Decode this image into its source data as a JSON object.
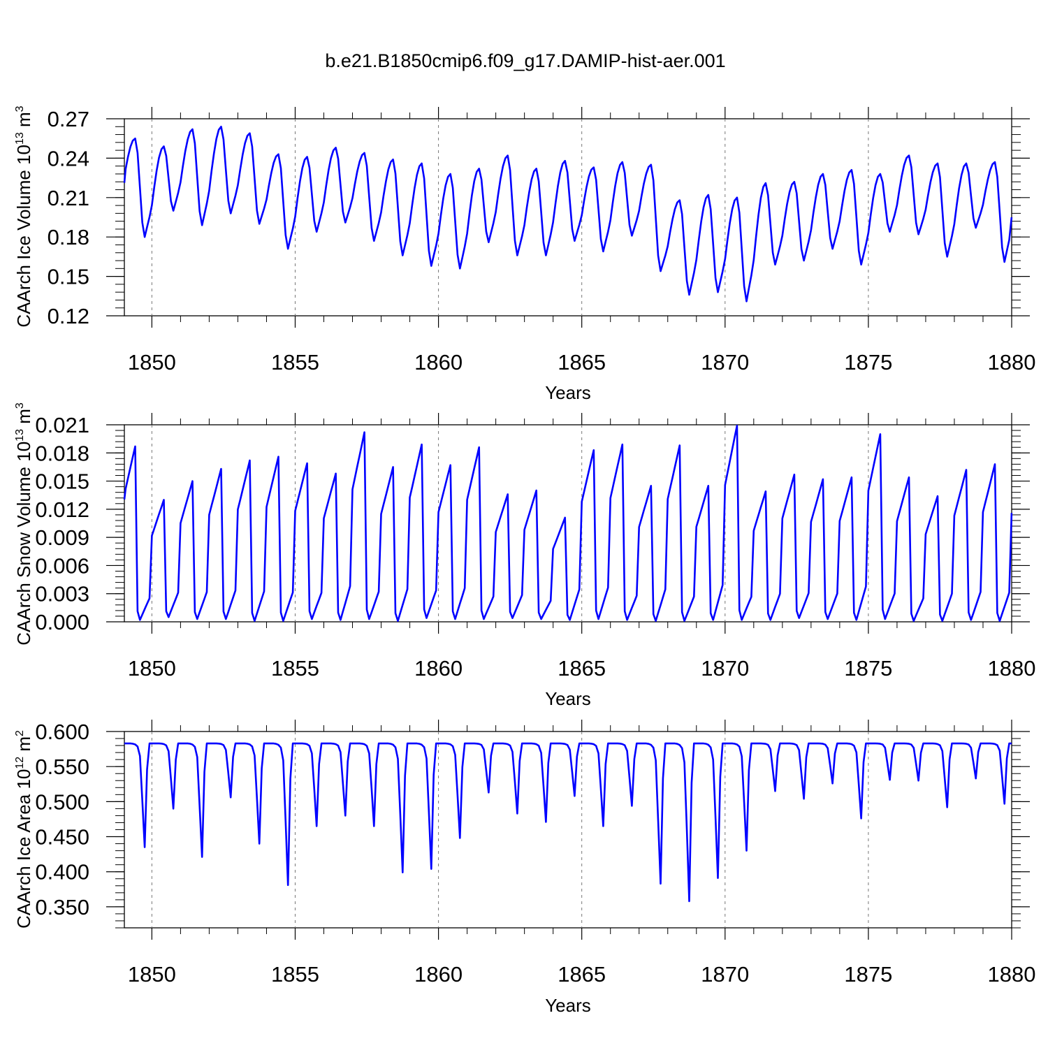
{
  "title": "b.e21.B1850cmip6.f09_g17.DAMIP-hist-aer.001",
  "line_color": "#0000ff",
  "chart_data": [
    {
      "type": "line",
      "ylabel": "CAArch Ice Volume 10",
      "yunit_exp": "13",
      "yunit_base": " m",
      "yunit_pow": "3",
      "xlabel": "Years",
      "xlim": [
        1849.04,
        1880.0
      ],
      "ylim": [
        0.12,
        0.27
      ],
      "xticks": [
        1850,
        1855,
        1860,
        1865,
        1870,
        1875,
        1880
      ],
      "yticks": [
        0.12,
        0.15,
        0.18,
        0.21,
        0.24,
        0.27
      ],
      "ytick_labels": [
        "0.12",
        "0.15",
        "0.18",
        "0.21",
        "0.24",
        "0.27"
      ],
      "series": [
        {
          "name": "CAArch Ice Volume",
          "start": 1849.0,
          "step": 0.08333,
          "peak_month": 5,
          "min_month": 9,
          "annual_max": [
            0.255,
            0.249,
            0.262,
            0.264,
            0.259,
            0.243,
            0.241,
            0.248,
            0.244,
            0.239,
            0.236,
            0.228,
            0.232,
            0.242,
            0.232,
            0.238,
            0.233,
            0.237,
            0.235,
            0.208,
            0.212,
            0.21,
            0.221,
            0.222,
            0.228,
            0.231,
            0.228,
            0.242,
            0.236,
            0.236,
            0.237
          ],
          "annual_min": [
            0.18,
            0.2,
            0.189,
            0.198,
            0.19,
            0.171,
            0.184,
            0.191,
            0.177,
            0.166,
            0.158,
            0.156,
            0.176,
            0.166,
            0.166,
            0.177,
            0.169,
            0.181,
            0.154,
            0.136,
            0.138,
            0.131,
            0.159,
            0.162,
            0.171,
            0.159,
            0.184,
            0.182,
            0.165,
            0.187,
            0.161
          ],
          "end_value": 0.195
        }
      ]
    },
    {
      "type": "line",
      "ylabel": "CAArch Snow Volume 10",
      "yunit_exp": "13",
      "yunit_base": " m",
      "yunit_pow": "3",
      "xlabel": "Years",
      "xlim": [
        1849.04,
        1880.0
      ],
      "ylim": [
        0.0,
        0.021
      ],
      "xticks": [
        1850,
        1855,
        1860,
        1865,
        1870,
        1875,
        1880
      ],
      "yticks": [
        0.0,
        0.003,
        0.006,
        0.009,
        0.012,
        0.015,
        0.018,
        0.021
      ],
      "ytick_labels": [
        "0.000",
        "0.003",
        "0.006",
        "0.009",
        "0.012",
        "0.015",
        "0.018",
        "0.021"
      ],
      "series": [
        {
          "name": "CAArch Snow Volume",
          "start": 1849.0,
          "step": 0.08333,
          "peak_month": 5,
          "min_month": 7,
          "annual_max": [
            0.0187,
            0.013,
            0.015,
            0.0163,
            0.0172,
            0.0176,
            0.0169,
            0.0158,
            0.0202,
            0.0165,
            0.0189,
            0.0167,
            0.0186,
            0.0136,
            0.014,
            0.0111,
            0.0183,
            0.0189,
            0.0145,
            0.0188,
            0.0145,
            0.0209,
            0.0139,
            0.0157,
            0.0152,
            0.0154,
            0.02,
            0.0154,
            0.0134,
            0.0162,
            0.0168
          ],
          "annual_min": [
            0.0002,
            0.0005,
            0.0003,
            0.0003,
            0.0001,
            0.0001,
            0.0003,
            0.0002,
            0.0003,
            0.0001,
            0.0004,
            0.0003,
            0.0003,
            0.0004,
            0.0003,
            0.0002,
            0.0003,
            0.0002,
            0.0001,
            0.0001,
            0.0002,
            0.0002,
            0.0002,
            0.0004,
            0.0003,
            0.0002,
            0.0003,
            0.0001,
            0.0001,
            0.0002,
            0.0001
          ],
          "end_value": 0.0116
        }
      ]
    },
    {
      "type": "line",
      "ylabel": "CAArch Ice Area 10",
      "yunit_exp": "12",
      "yunit_base": " m",
      "yunit_pow": "2",
      "xlabel": "Years",
      "xlim": [
        1849.04,
        1880.0
      ],
      "ylim": [
        0.32,
        0.6
      ],
      "xticks": [
        1850,
        1855,
        1860,
        1865,
        1870,
        1875,
        1880
      ],
      "yticks": [
        0.35,
        0.4,
        0.45,
        0.5,
        0.55,
        0.6
      ],
      "ytick_labels": [
        "0.350",
        "0.400",
        "0.450",
        "0.500",
        "0.550",
        "0.600"
      ],
      "series": [
        {
          "name": "CAArch Ice Area",
          "start": 1849.0,
          "step": 0.08333,
          "plateau": 0.583,
          "annual_min": [
            0.435,
            0.49,
            0.421,
            0.506,
            0.44,
            0.381,
            0.465,
            0.48,
            0.465,
            0.399,
            0.404,
            0.448,
            0.513,
            0.483,
            0.471,
            0.508,
            0.465,
            0.494,
            0.383,
            0.358,
            0.391,
            0.43,
            0.515,
            0.504,
            0.526,
            0.476,
            0.531,
            0.53,
            0.492,
            0.533,
            0.497
          ],
          "end_value": 0.583
        }
      ]
    }
  ]
}
